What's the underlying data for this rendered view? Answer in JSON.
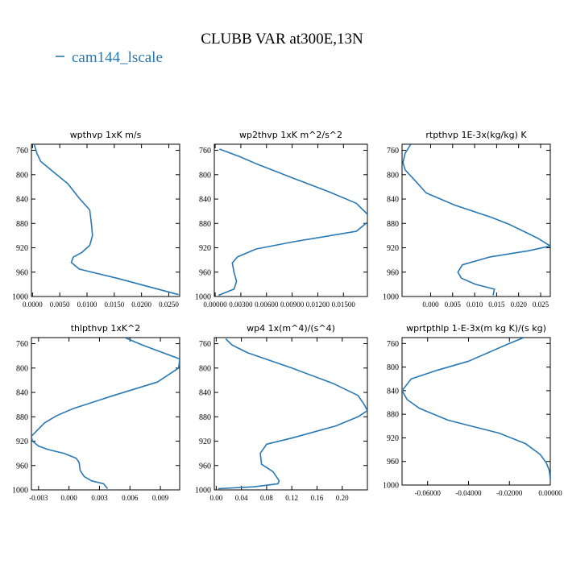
{
  "figure": {
    "title": "CLUBB VAR at300E,13N",
    "legend": {
      "label": "cam144_lscale",
      "color": "#2878b4"
    }
  },
  "chart_data": [
    {
      "type": "line",
      "title": "wpthvp   1xK m/s",
      "xlim": [
        -0.0002,
        0.027
      ],
      "xticks": [
        0.0,
        0.005,
        0.01,
        0.015,
        0.02,
        0.025
      ],
      "xtick_labels": [
        "0.0000",
        "0.0050",
        "0.0100",
        "0.0150",
        "0.0200",
        "0.0250"
      ],
      "ylim": [
        1000,
        750
      ],
      "yticks": [
        760,
        800,
        840,
        880,
        920,
        960,
        1000
      ],
      "series": [
        {
          "x": [
            0.0003,
            0.0008,
            0.0015,
            0.0035,
            0.0065,
            0.0085,
            0.0105,
            0.0106,
            0.0108,
            0.011,
            0.0105,
            0.009,
            0.0075,
            0.0071,
            0.0086,
            0.0155,
            0.0268
          ],
          "y": [
            750,
            765,
            778,
            793,
            815,
            838,
            858,
            866,
            880,
            900,
            916,
            928,
            935,
            944,
            955,
            970,
            997
          ]
        }
      ]
    },
    {
      "type": "line",
      "title": "wp2thvp   1xK m^2/s^2",
      "xlim": [
        -0.0001,
        0.0178
      ],
      "xticks": [
        0.0,
        0.003,
        0.006,
        0.009,
        0.012,
        0.015
      ],
      "xtick_labels": [
        "0.00000",
        "0.00300",
        "0.00600",
        "0.00900",
        "0.01200",
        "0.01500"
      ],
      "ylim": [
        1000,
        750
      ],
      "yticks": [
        760,
        800,
        840,
        880,
        920,
        960,
        1000
      ],
      "series": [
        {
          "x": [
            0.0005,
            0.0028,
            0.0048,
            0.009,
            0.0133,
            0.0165,
            0.0178,
            0.0178,
            0.0165,
            0.0092,
            0.0048,
            0.0026,
            0.002,
            0.0022,
            0.0025,
            0.0022,
            0.0004
          ],
          "y": [
            758,
            770,
            782,
            805,
            828,
            847,
            865,
            878,
            893,
            910,
            922,
            935,
            945,
            960,
            975,
            988,
            998
          ]
        }
      ]
    },
    {
      "type": "line",
      "title": "rtpthvp   1E-3x(kg/kg) K",
      "xlim": [
        -0.0065,
        0.0272
      ],
      "xticks": [
        0.0,
        0.005,
        0.01,
        0.015,
        0.02,
        0.025
      ],
      "xtick_labels": [
        "0.000",
        "0.005",
        "0.010",
        "0.015",
        "0.020",
        "0.025"
      ],
      "ylim": [
        1000,
        750
      ],
      "yticks": [
        760,
        800,
        840,
        880,
        920,
        960,
        1000
      ],
      "series": [
        {
          "x": [
            -0.0045,
            -0.0058,
            -0.0063,
            -0.0058,
            -0.0035,
            -0.001,
            0.0055,
            0.0138,
            0.018,
            0.022,
            0.0245,
            0.0272,
            0.0222,
            0.0135,
            0.0072,
            0.0062,
            0.007,
            0.0102,
            0.0145,
            0.0142
          ],
          "y": [
            750,
            765,
            780,
            792,
            810,
            830,
            850,
            870,
            882,
            896,
            905,
            917,
            925,
            935,
            948,
            960,
            970,
            980,
            988,
            998
          ]
        }
      ]
    },
    {
      "type": "line",
      "title": "thlpthvp   1xK^2",
      "xlim": [
        -0.0037,
        0.0109
      ],
      "xticks": [
        -0.003,
        0.0,
        0.003,
        0.006,
        0.009
      ],
      "xtick_labels": [
        "-0.003",
        "0.000",
        "0.003",
        "0.006",
        "0.009"
      ],
      "ylim": [
        1000,
        750
      ],
      "yticks": [
        760,
        800,
        840,
        880,
        920,
        960,
        1000
      ],
      "series": [
        {
          "x": [
            0.0055,
            0.0072,
            0.0088,
            0.0109,
            0.0108,
            0.0087,
            0.0044,
            0.0005,
            -0.0012,
            -0.0024,
            -0.003,
            -0.0037,
            -0.0036,
            -0.003,
            -0.002,
            -0.0005,
            0.0007,
            0.001,
            0.0011,
            0.0015,
            0.0022,
            0.0034,
            0.0038
          ],
          "y": [
            750,
            762,
            772,
            785,
            800,
            823,
            845,
            866,
            878,
            890,
            900,
            912,
            920,
            928,
            934,
            940,
            948,
            955,
            968,
            978,
            985,
            990,
            998
          ]
        }
      ]
    },
    {
      "type": "line",
      "title": "wp4   1x(m^4)/(s^4)",
      "xlim": [
        -0.003,
        0.24
      ],
      "xticks": [
        0.0,
        0.04,
        0.08,
        0.12,
        0.16,
        0.2
      ],
      "xtick_labels": [
        "0.00",
        "0.04",
        "0.08",
        "0.12",
        "0.16",
        "0.20"
      ],
      "ylim": [
        1000,
        750
      ],
      "yticks": [
        760,
        800,
        840,
        880,
        920,
        960,
        1000
      ],
      "series": [
        {
          "x": [
            0.015,
            0.025,
            0.05,
            0.12,
            0.185,
            0.225,
            0.235,
            0.24,
            0.225,
            0.19,
            0.12,
            0.08,
            0.07,
            0.072,
            0.09,
            0.1,
            0.098,
            0.06,
            0.003
          ],
          "y": [
            752,
            762,
            775,
            800,
            825,
            845,
            860,
            870,
            880,
            895,
            915,
            925,
            940,
            958,
            970,
            985,
            990,
            995,
            998
          ]
        }
      ]
    },
    {
      "type": "line",
      "title": "wprtpthlp   1-E-3x(m kg K)/(s kg)",
      "xlim": [
        -0.0725,
        0.0
      ],
      "xticks": [
        -0.06,
        -0.04,
        -0.02,
        0.0
      ],
      "xtick_labels": [
        "-0.06000",
        "-0.04000",
        "-0.02000",
        "0.00000"
      ],
      "ylim": [
        1000,
        750
      ],
      "yticks": [
        760,
        800,
        840,
        880,
        920,
        960,
        1000
      ],
      "series": [
        {
          "x": [
            -0.013,
            -0.02,
            -0.04,
            -0.055,
            -0.068,
            -0.0725,
            -0.07,
            -0.064,
            -0.05,
            -0.025,
            -0.012,
            -0.005,
            -0.002,
            -0.0005,
            0.0
          ],
          "y": [
            750,
            760,
            790,
            805,
            820,
            840,
            855,
            870,
            890,
            912,
            930,
            948,
            962,
            975,
            990
          ]
        }
      ]
    }
  ]
}
